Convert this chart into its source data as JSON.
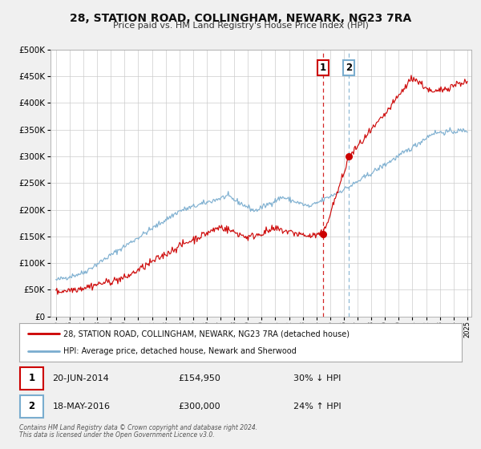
{
  "title": "28, STATION ROAD, COLLINGHAM, NEWARK, NG23 7RA",
  "subtitle": "Price paid vs. HM Land Registry's House Price Index (HPI)",
  "legend_line1": "28, STATION ROAD, COLLINGHAM, NEWARK, NG23 7RA (detached house)",
  "legend_line2": "HPI: Average price, detached house, Newark and Sherwood",
  "transaction1_date": "20-JUN-2014",
  "transaction1_price": "£154,950",
  "transaction1_hpi": "30% ↓ HPI",
  "transaction2_date": "18-MAY-2016",
  "transaction2_price": "£300,000",
  "transaction2_hpi": "24% ↑ HPI",
  "footer1": "Contains HM Land Registry data © Crown copyright and database right 2024.",
  "footer2": "This data is licensed under the Open Government Licence v3.0.",
  "price_color": "#cc0000",
  "hpi_color": "#7aadcf",
  "bg_color": "#f0f0f0",
  "plot_bg_color": "#ffffff",
  "grid_color": "#cccccc",
  "vline1_x": 2014.47,
  "vline2_x": 2016.37,
  "ylim_max": 500000,
  "xlim_min": 1994.6,
  "xlim_max": 2025.3,
  "xtick_years": [
    1995,
    1996,
    1997,
    1998,
    1999,
    2000,
    2001,
    2002,
    2003,
    2004,
    2005,
    2006,
    2007,
    2008,
    2009,
    2010,
    2011,
    2012,
    2013,
    2014,
    2015,
    2016,
    2017,
    2018,
    2019,
    2020,
    2021,
    2022,
    2023,
    2024,
    2025
  ],
  "yticks": [
    0,
    50000,
    100000,
    150000,
    200000,
    250000,
    300000,
    350000,
    400000,
    450000,
    500000
  ]
}
